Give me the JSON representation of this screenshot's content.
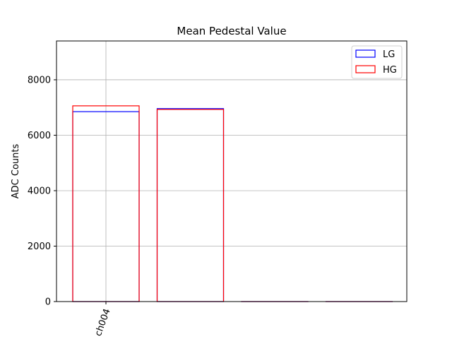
{
  "chart_data": {
    "type": "bar",
    "title": "Mean Pedestal Value",
    "xlabel": "",
    "ylabel": "ADC Counts",
    "categories": [
      "ch004",
      "",
      "",
      ""
    ],
    "ylim": [
      0,
      9400
    ],
    "yticks": [
      0,
      2000,
      4000,
      6000,
      8000
    ],
    "grid": true,
    "legend_position": "top-right",
    "series": [
      {
        "name": "LG",
        "color": "#0000ff",
        "values": [
          6850,
          6960,
          0,
          0
        ]
      },
      {
        "name": "HG",
        "color": "#ff0000",
        "values": [
          7060,
          6930,
          0,
          0
        ]
      }
    ]
  }
}
